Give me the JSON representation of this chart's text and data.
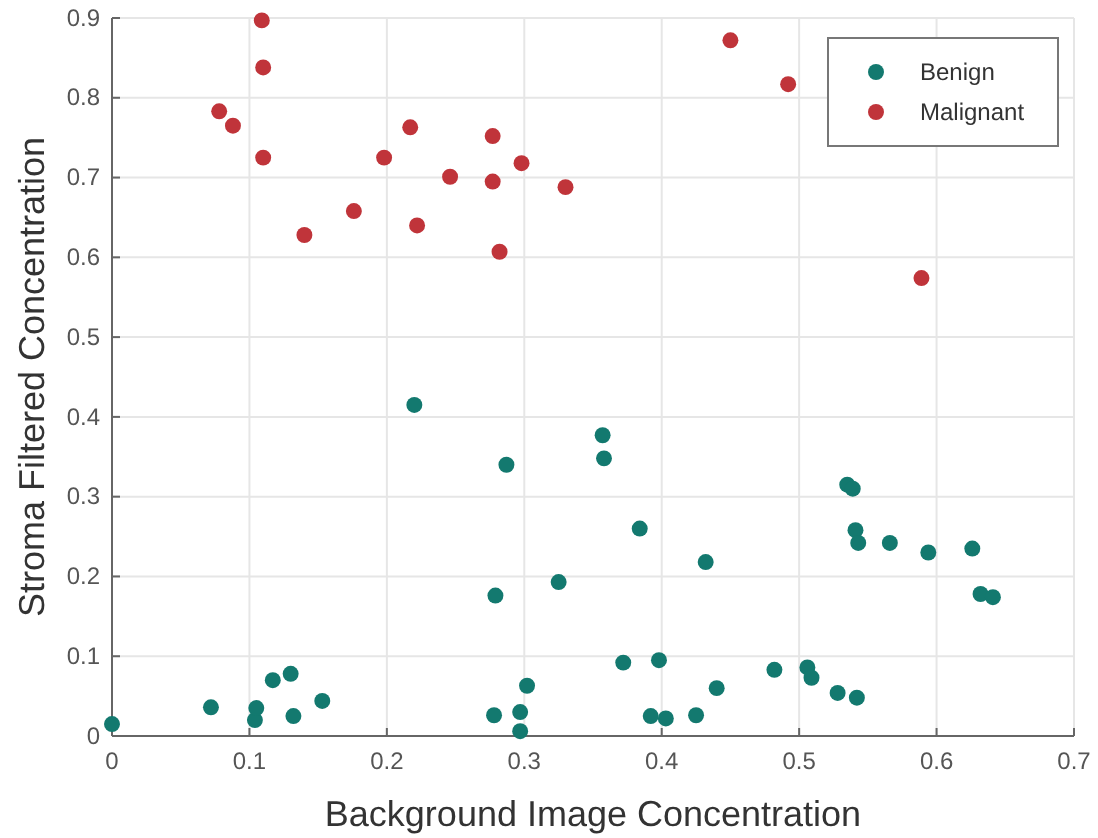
{
  "chart_data": {
    "type": "scatter",
    "xlabel": "Background Image Concentration",
    "ylabel": "Stroma Filtered Concentration",
    "xlim": [
      0,
      0.7
    ],
    "ylim": [
      0,
      0.9
    ],
    "xticks": [
      0,
      0.1,
      0.2,
      0.3,
      0.4,
      0.5,
      0.6,
      0.7
    ],
    "yticks": [
      0,
      0.1,
      0.2,
      0.3,
      0.4,
      0.5,
      0.6,
      0.7,
      0.8,
      0.9
    ],
    "grid": true,
    "legend": "top right",
    "marker": "circle",
    "series": [
      {
        "name": "Benign",
        "color": "#13796f",
        "x": [
          0.0,
          0.072,
          0.104,
          0.105,
          0.117,
          0.13,
          0.132,
          0.153,
          0.22,
          0.278,
          0.279,
          0.287,
          0.297,
          0.297,
          0.302,
          0.325,
          0.357,
          0.358,
          0.372,
          0.384,
          0.392,
          0.398,
          0.403,
          0.425,
          0.432,
          0.44,
          0.482,
          0.506,
          0.509,
          0.528,
          0.535,
          0.539,
          0.541,
          0.542,
          0.543,
          0.566,
          0.594,
          0.626,
          0.632,
          0.641
        ],
        "values": [
          0.015,
          0.036,
          0.02,
          0.035,
          0.07,
          0.078,
          0.025,
          0.044,
          0.415,
          0.026,
          0.176,
          0.34,
          0.006,
          0.03,
          0.063,
          0.193,
          0.377,
          0.348,
          0.092,
          0.26,
          0.025,
          0.095,
          0.022,
          0.026,
          0.218,
          0.06,
          0.083,
          0.086,
          0.073,
          0.054,
          0.315,
          0.31,
          0.258,
          0.048,
          0.242,
          0.242,
          0.23,
          0.235,
          0.178,
          0.174
        ]
      },
      {
        "name": "Malignant",
        "color": "#c0343a",
        "x": [
          0.078,
          0.088,
          0.109,
          0.11,
          0.11,
          0.14,
          0.176,
          0.198,
          0.217,
          0.222,
          0.246,
          0.277,
          0.277,
          0.282,
          0.298,
          0.33,
          0.45,
          0.492,
          0.589
        ],
        "values": [
          0.783,
          0.765,
          0.897,
          0.838,
          0.725,
          0.628,
          0.658,
          0.725,
          0.763,
          0.64,
          0.701,
          0.752,
          0.695,
          0.607,
          0.718,
          0.688,
          0.872,
          0.817,
          0.574
        ]
      }
    ]
  }
}
